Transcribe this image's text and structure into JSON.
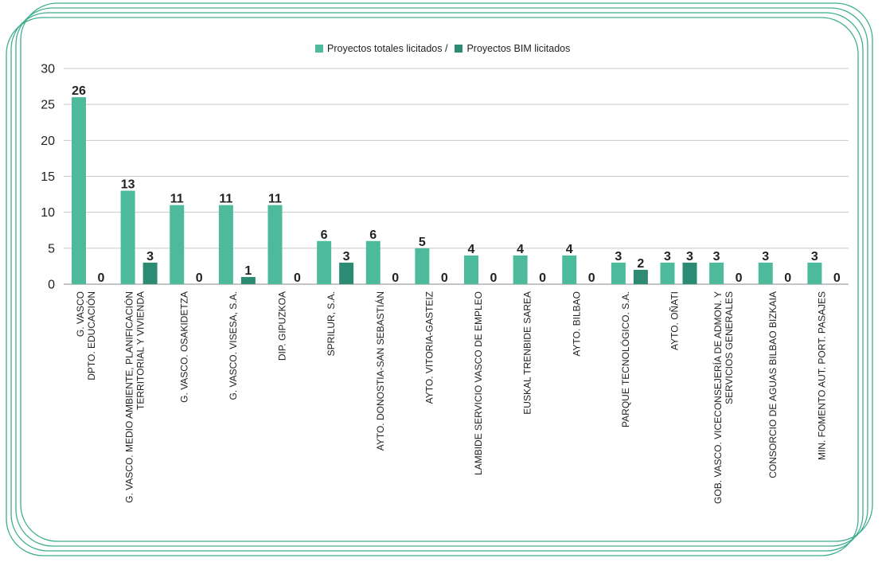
{
  "chart_data": {
    "type": "bar",
    "title": "",
    "xlabel": "",
    "ylabel": "",
    "ylim": [
      0,
      30
    ],
    "yticks": [
      "0",
      "5",
      "10",
      "15",
      "20",
      "25",
      "30"
    ],
    "grid": true,
    "legend_position": "top-center",
    "colors": {
      "total": "#4dba9c",
      "bim": "#2e8b73",
      "frame": "#3fae8f"
    },
    "categories": [
      [
        "G. VASCO",
        "DPTO. EDUCACIÓN"
      ],
      [
        "G. VASCO. MEDIO AMBIENTE, PLANIFICACIÓN",
        "TERRITORIAL Y VIVIENDA"
      ],
      [
        "G. VASCO. OSAKIDETZA"
      ],
      [
        "G. VASCO. VISESA, S.A."
      ],
      [
        "DIP. GIPUZKOA"
      ],
      [
        "SPRILUR, S.A."
      ],
      [
        "AYTO. DONOSTIA-SAN SEBASTIÁN"
      ],
      [
        "AYTO. VITORIA-GASTEIZ"
      ],
      [
        "LAMBIDE SERVICIO VASCO DE EMPLEO"
      ],
      [
        "EUSKAL TRENBIDE SAREA"
      ],
      [
        "AYTO. BILBAO"
      ],
      [
        "PARQUE TECNOLÓGICO. S.A."
      ],
      [
        "AYTO. OÑATI"
      ],
      [
        "GOB. VASCO. VICECONSEJERÍA DE ADMON. Y",
        "SERVICIOS GENERALES"
      ],
      [
        "CONSORCIO DE AGUAS BILBAO BIZKAIA"
      ],
      [
        "MIN. FOMENTO AUT. PORT. PASAJES"
      ]
    ],
    "series": [
      {
        "name": "Proyectos totales licitados /",
        "values": [
          26,
          13,
          11,
          11,
          11,
          6,
          6,
          5,
          4,
          4,
          4,
          3,
          3,
          3,
          3,
          3
        ]
      },
      {
        "name": "Proyectos BIM licitados",
        "values": [
          0,
          3,
          0,
          1,
          0,
          3,
          0,
          0,
          0,
          0,
          0,
          2,
          3,
          0,
          0,
          0
        ]
      }
    ]
  }
}
